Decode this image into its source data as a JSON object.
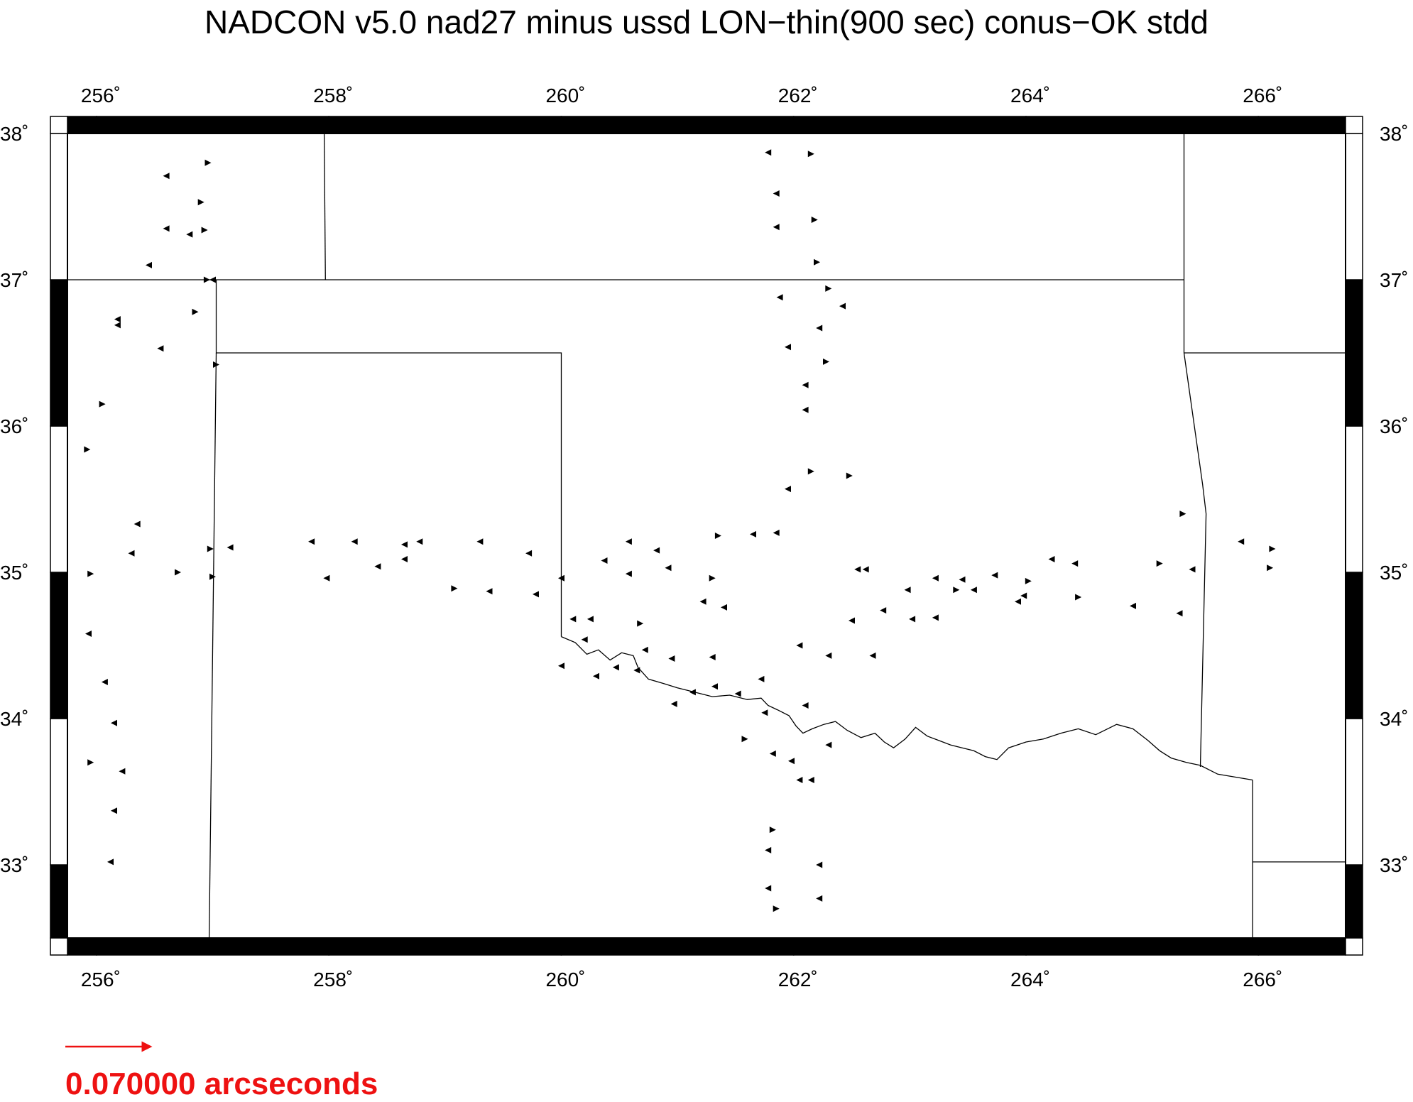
{
  "title": "NADCON v5.0 nad27 minus ussd LON−thin(900 sec) conus−OK stdd",
  "map": {
    "lon_range": [
      255.75,
      266.75
    ],
    "lat_range": [
      32.5,
      38.0
    ],
    "lon_ticks": [
      256,
      258,
      260,
      262,
      264,
      266
    ],
    "lat_ticks": [
      33,
      34,
      35,
      36,
      37,
      38
    ],
    "lon_tick_labels": [
      "256˚",
      "258˚",
      "260˚",
      "262˚",
      "264˚",
      "266˚"
    ],
    "lat_tick_labels": [
      "33˚",
      "34˚",
      "35˚",
      "36˚",
      "37˚",
      "38˚"
    ],
    "line_color": "#000000",
    "vector_color": "#000000"
  },
  "scale": {
    "value_arcsec": 0.07,
    "label": "0.070000 arcseconds",
    "color": "#ee1111"
  },
  "boundaries": [
    [
      [
        257.96,
        38.0
      ],
      [
        257.97,
        37.0
      ]
    ],
    [
      [
        255.75,
        37.0
      ],
      [
        265.36,
        37.0
      ]
    ],
    [
      [
        257.03,
        37.0
      ],
      [
        257.03,
        36.5
      ],
      [
        260.0,
        36.5
      ],
      [
        260.0,
        34.56
      ]
    ],
    [
      [
        257.03,
        36.5
      ],
      [
        256.97,
        32.5
      ]
    ],
    [
      [
        260.0,
        34.56
      ],
      [
        260.12,
        34.52
      ],
      [
        260.22,
        34.44
      ],
      [
        260.32,
        34.47
      ],
      [
        260.42,
        34.4
      ],
      [
        260.52,
        34.45
      ],
      [
        260.62,
        34.43
      ],
      [
        260.66,
        34.35
      ],
      [
        260.75,
        34.27
      ],
      [
        260.88,
        34.24
      ],
      [
        261.0,
        34.21
      ],
      [
        261.15,
        34.18
      ],
      [
        261.3,
        34.15
      ],
      [
        261.45,
        34.16
      ],
      [
        261.6,
        34.13
      ],
      [
        261.72,
        34.14
      ],
      [
        261.78,
        34.09
      ],
      [
        261.86,
        34.06
      ],
      [
        261.96,
        34.02
      ],
      [
        262.02,
        33.95
      ],
      [
        262.08,
        33.9
      ],
      [
        262.16,
        33.93
      ],
      [
        262.26,
        33.96
      ],
      [
        262.36,
        33.98
      ],
      [
        262.46,
        33.92
      ],
      [
        262.58,
        33.87
      ],
      [
        262.7,
        33.9
      ],
      [
        262.78,
        33.84
      ],
      [
        262.86,
        33.8
      ],
      [
        262.96,
        33.86
      ],
      [
        263.05,
        33.94
      ],
      [
        263.15,
        33.88
      ],
      [
        263.25,
        33.85
      ],
      [
        263.35,
        33.82
      ],
      [
        263.45,
        33.8
      ],
      [
        263.55,
        33.78
      ],
      [
        263.65,
        33.74
      ],
      [
        263.75,
        33.72
      ],
      [
        263.85,
        33.8
      ],
      [
        264.0,
        33.84
      ],
      [
        264.15,
        33.86
      ],
      [
        264.3,
        33.9
      ],
      [
        264.45,
        33.93
      ],
      [
        264.6,
        33.89
      ],
      [
        264.78,
        33.96
      ],
      [
        264.92,
        33.93
      ],
      [
        265.05,
        33.85
      ],
      [
        265.15,
        33.78
      ],
      [
        265.25,
        33.73
      ],
      [
        265.38,
        33.7
      ],
      [
        265.5,
        33.68
      ],
      [
        265.65,
        33.62
      ],
      [
        265.8,
        33.6
      ],
      [
        265.95,
        33.58
      ]
    ],
    [
      [
        265.36,
        38.0
      ],
      [
        265.36,
        36.5
      ],
      [
        265.52,
        35.6
      ],
      [
        265.55,
        35.4
      ],
      [
        265.5,
        33.67
      ]
    ],
    [
      [
        265.36,
        36.5
      ],
      [
        266.75,
        36.5
      ]
    ],
    [
      [
        265.95,
        33.58
      ],
      [
        265.95,
        32.5
      ]
    ],
    [
      [
        265.95,
        33.02
      ],
      [
        266.75,
        33.02
      ]
    ]
  ],
  "vectors": [
    [
      256.6,
      37.71,
      -1
    ],
    [
      256.9,
      37.53,
      1
    ],
    [
      256.96,
      37.8,
      1
    ],
    [
      256.93,
      37.34,
      1
    ],
    [
      256.8,
      37.31,
      -1
    ],
    [
      256.6,
      37.35,
      -1
    ],
    [
      256.45,
      37.1,
      -1
    ],
    [
      256.95,
      37.0,
      1
    ],
    [
      257.0,
      37.0,
      -1
    ],
    [
      256.85,
      36.78,
      1
    ],
    [
      256.18,
      36.73,
      -1
    ],
    [
      256.18,
      36.69,
      -1
    ],
    [
      256.55,
      36.53,
      -1
    ],
    [
      257.03,
      36.42,
      1
    ],
    [
      256.05,
      36.15,
      1
    ],
    [
      255.92,
      35.84,
      1
    ],
    [
      256.35,
      35.33,
      -1
    ],
    [
      256.3,
      35.13,
      -1
    ],
    [
      256.7,
      35.0,
      1
    ],
    [
      256.98,
      35.16,
      1
    ],
    [
      257.0,
      34.97,
      1
    ],
    [
      257.15,
      35.17,
      -1
    ],
    [
      255.95,
      34.99,
      1
    ],
    [
      255.93,
      34.58,
      -1
    ],
    [
      256.07,
      34.25,
      -1
    ],
    [
      256.15,
      33.97,
      -1
    ],
    [
      256.22,
      33.64,
      -1
    ],
    [
      256.15,
      33.37,
      -1
    ],
    [
      256.12,
      33.02,
      -1
    ],
    [
      255.95,
      33.7,
      1
    ],
    [
      257.85,
      35.21,
      -1
    ],
    [
      257.98,
      34.96,
      -1
    ],
    [
      258.22,
      35.21,
      -1
    ],
    [
      258.42,
      35.04,
      -1
    ],
    [
      258.65,
      35.09,
      -1
    ],
    [
      258.65,
      35.19,
      -1
    ],
    [
      258.78,
      35.21,
      -1
    ],
    [
      259.08,
      34.89,
      1
    ],
    [
      259.3,
      35.21,
      -1
    ],
    [
      259.38,
      34.87,
      -1
    ],
    [
      259.72,
      35.13,
      -1
    ],
    [
      259.78,
      34.85,
      -1
    ],
    [
      260.0,
      34.96,
      -1
    ],
    [
      260.0,
      34.36,
      -1
    ],
    [
      260.1,
      34.68,
      -1
    ],
    [
      260.2,
      34.54,
      -1
    ],
    [
      260.25,
      34.68,
      -1
    ],
    [
      260.3,
      34.29,
      -1
    ],
    [
      260.37,
      35.08,
      -1
    ],
    [
      260.47,
      34.35,
      -1
    ],
    [
      260.58,
      35.21,
      -1
    ],
    [
      260.58,
      34.99,
      -1
    ],
    [
      260.68,
      34.65,
      1
    ],
    [
      260.65,
      34.33,
      -1
    ],
    [
      260.72,
      34.47,
      -1
    ],
    [
      260.82,
      35.15,
      -1
    ],
    [
      260.92,
      35.03,
      -1
    ],
    [
      260.95,
      34.41,
      -1
    ],
    [
      260.97,
      34.1,
      -1
    ],
    [
      261.13,
      34.18,
      -1
    ],
    [
      261.22,
      34.8,
      -1
    ],
    [
      261.3,
      34.96,
      1
    ],
    [
      261.3,
      34.42,
      -1
    ],
    [
      261.32,
      34.22,
      -1
    ],
    [
      261.35,
      35.25,
      1
    ],
    [
      261.4,
      34.76,
      -1
    ],
    [
      261.52,
      34.17,
      -1
    ],
    [
      261.58,
      33.86,
      1
    ],
    [
      261.65,
      35.26,
      -1
    ],
    [
      261.72,
      34.27,
      -1
    ],
    [
      261.75,
      34.04,
      -1
    ],
    [
      261.78,
      32.84,
      -1
    ],
    [
      261.78,
      33.1,
      -1
    ],
    [
      261.78,
      37.87,
      -1
    ],
    [
      261.82,
      33.76,
      -1
    ],
    [
      261.82,
      33.24,
      1
    ],
    [
      261.85,
      35.27,
      -1
    ],
    [
      261.85,
      37.59,
      -1
    ],
    [
      261.85,
      37.36,
      -1
    ],
    [
      261.85,
      32.7,
      1
    ],
    [
      261.88,
      36.88,
      -1
    ],
    [
      261.95,
      36.54,
      -1
    ],
    [
      261.95,
      35.57,
      -1
    ],
    [
      261.98,
      33.71,
      -1
    ],
    [
      262.05,
      34.5,
      -1
    ],
    [
      262.05,
      33.58,
      -1
    ],
    [
      262.1,
      36.28,
      -1
    ],
    [
      262.1,
      36.11,
      -1
    ],
    [
      262.1,
      34.09,
      -1
    ],
    [
      262.15,
      37.86,
      1
    ],
    [
      262.15,
      35.69,
      1
    ],
    [
      262.15,
      33.58,
      -1
    ],
    [
      262.18,
      37.41,
      1
    ],
    [
      262.2,
      37.12,
      1
    ],
    [
      262.22,
      36.67,
      -1
    ],
    [
      262.22,
      33.0,
      -1
    ],
    [
      262.22,
      32.77,
      -1
    ],
    [
      262.28,
      36.44,
      1
    ],
    [
      262.3,
      36.94,
      1
    ],
    [
      262.3,
      33.82,
      -1
    ],
    [
      262.3,
      34.43,
      -1
    ],
    [
      262.42,
      36.82,
      -1
    ],
    [
      262.48,
      35.66,
      1
    ],
    [
      262.5,
      34.67,
      -1
    ],
    [
      262.55,
      35.02,
      -1
    ],
    [
      262.62,
      35.02,
      -1
    ],
    [
      262.68,
      34.43,
      -1
    ],
    [
      262.77,
      34.74,
      -1
    ],
    [
      262.98,
      34.88,
      -1
    ],
    [
      263.02,
      34.68,
      -1
    ],
    [
      263.22,
      34.96,
      -1
    ],
    [
      263.22,
      34.69,
      -1
    ],
    [
      263.4,
      34.88,
      1
    ],
    [
      263.45,
      34.95,
      -1
    ],
    [
      263.55,
      34.88,
      -1
    ],
    [
      263.73,
      34.98,
      -1
    ],
    [
      263.93,
      34.8,
      -1
    ],
    [
      263.98,
      34.84,
      -1
    ],
    [
      264.02,
      34.94,
      1
    ],
    [
      264.22,
      35.09,
      -1
    ],
    [
      264.42,
      35.06,
      -1
    ],
    [
      264.45,
      34.83,
      1
    ],
    [
      264.92,
      34.77,
      -1
    ],
    [
      265.15,
      35.06,
      1
    ],
    [
      265.32,
      34.72,
      -1
    ],
    [
      265.35,
      35.4,
      1
    ],
    [
      265.43,
      35.02,
      -1
    ],
    [
      265.85,
      35.21,
      -1
    ],
    [
      266.1,
      35.03,
      1
    ],
    [
      266.12,
      35.16,
      1
    ]
  ]
}
